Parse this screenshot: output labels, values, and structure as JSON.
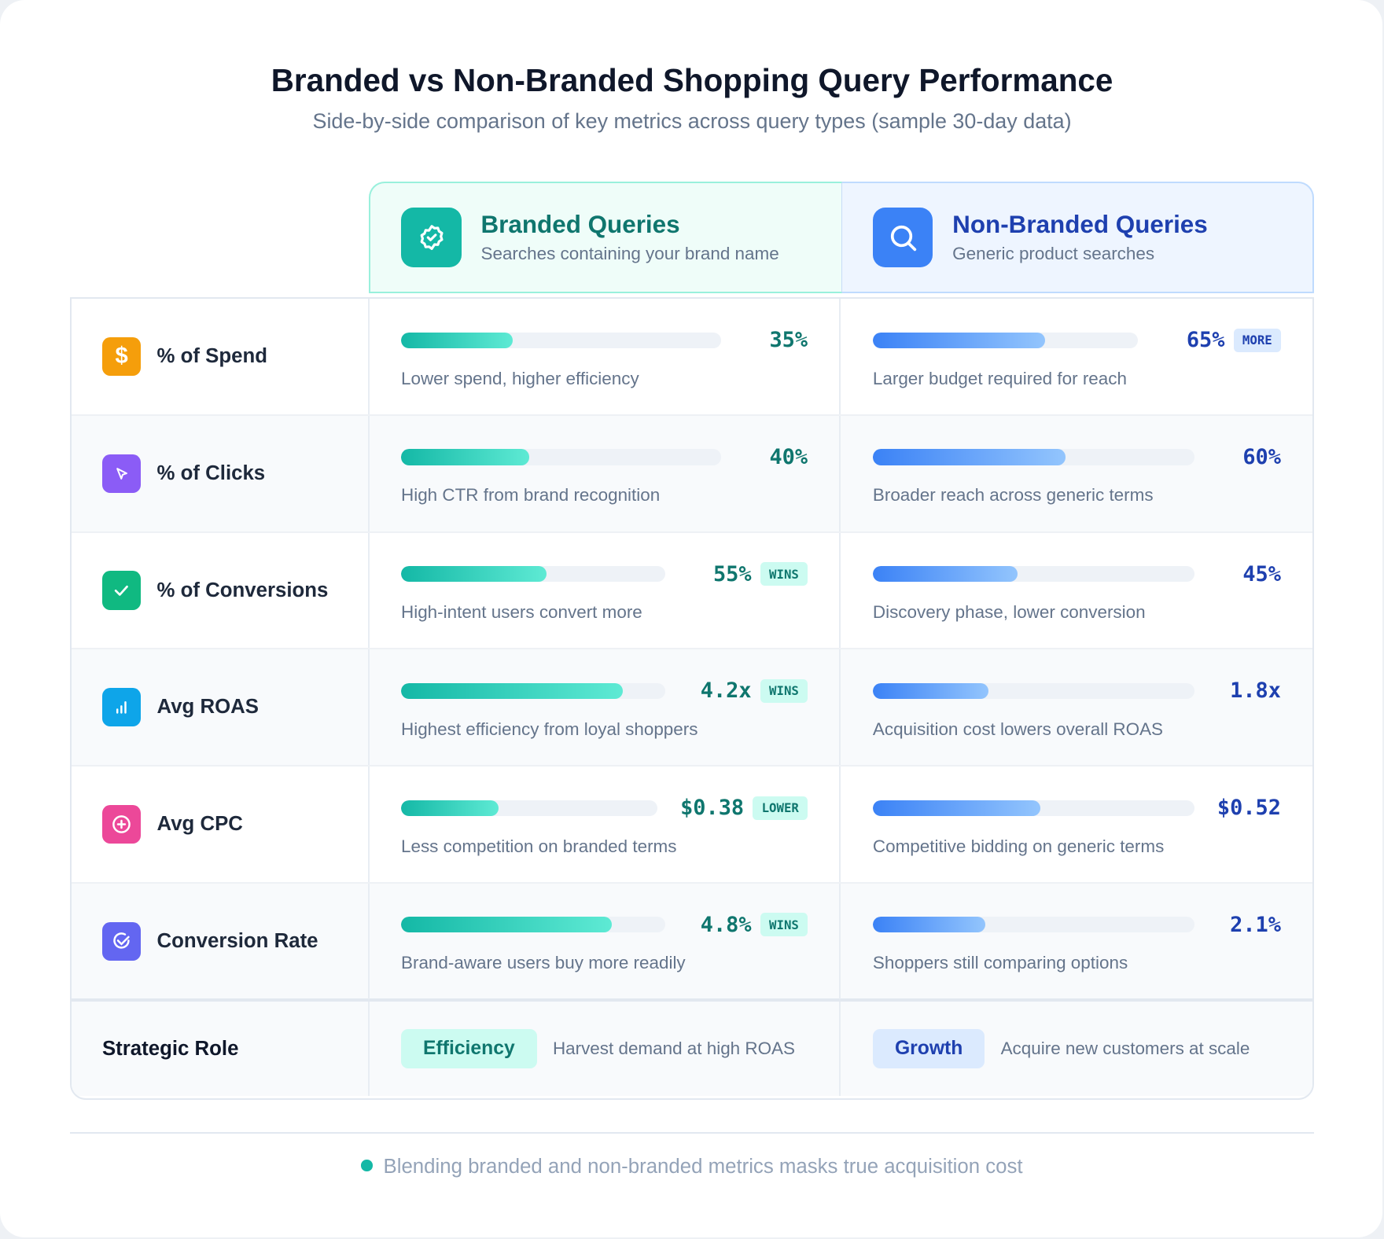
{
  "title": "Branded vs Non-Branded Shopping Query Performance",
  "subtitle": "Side-by-side comparison of key metrics across query types (sample 30-day data)",
  "columns": {
    "branded": {
      "name": "Branded Queries",
      "description": "Searches containing your brand name",
      "icon": "badge-check-icon",
      "color": "#14b8a6"
    },
    "non_branded": {
      "name": "Non-Branded Queries",
      "description": "Generic product searches",
      "icon": "search-icon",
      "color": "#3b82f6"
    }
  },
  "metrics": [
    {
      "label": "% of Spend",
      "icon": "dollar-icon",
      "icon_color": "#f59e0b",
      "branded": {
        "value": "35%",
        "bar_fill": 0.35,
        "note": "Lower spend, higher efficiency",
        "badge": ""
      },
      "non_branded": {
        "value": "65%",
        "bar_fill": 0.65,
        "note": "Larger budget required for reach",
        "badge": "MORE"
      }
    },
    {
      "label": "% of Clicks",
      "icon": "cursor-icon",
      "icon_color": "#8b5cf6",
      "branded": {
        "value": "40%",
        "bar_fill": 0.4,
        "note": "High CTR from brand recognition",
        "badge": ""
      },
      "non_branded": {
        "value": "60%",
        "bar_fill": 0.6,
        "note": "Broader reach across generic terms",
        "badge": ""
      }
    },
    {
      "label": "% of Conversions",
      "icon": "check-icon",
      "icon_color": "#10b981",
      "branded": {
        "value": "55%",
        "bar_fill": 0.55,
        "note": "High-intent users convert more",
        "badge": "WINS"
      },
      "non_branded": {
        "value": "45%",
        "bar_fill": 0.45,
        "note": "Discovery phase, lower conversion",
        "badge": ""
      }
    },
    {
      "label": "Avg ROAS",
      "icon": "bar-chart-icon",
      "icon_color": "#0ea5e9",
      "branded": {
        "value": "4.2x",
        "bar_fill": 0.84,
        "note": "Highest efficiency from loyal shoppers",
        "badge": "WINS"
      },
      "non_branded": {
        "value": "1.8x",
        "bar_fill": 0.36,
        "note": "Acquisition cost lowers overall ROAS",
        "badge": ""
      }
    },
    {
      "label": "Avg CPC",
      "icon": "plus-circle-icon",
      "icon_color": "#ec4899",
      "branded": {
        "value": "$0.38",
        "bar_fill": 0.38,
        "note": "Less competition on branded terms",
        "badge": "LOWER"
      },
      "non_branded": {
        "value": "$0.52",
        "bar_fill": 0.52,
        "note": "Competitive bidding on generic terms",
        "badge": ""
      }
    },
    {
      "label": "Conversion Rate",
      "icon": "circle-check-icon",
      "icon_color": "#6366f1",
      "branded": {
        "value": "4.8%",
        "bar_fill": 0.8,
        "note": "Brand-aware users buy more readily",
        "badge": "WINS"
      },
      "non_branded": {
        "value": "2.1%",
        "bar_fill": 0.35,
        "note": "Shoppers still comparing options",
        "badge": ""
      }
    }
  ],
  "strategic_role": {
    "label": "Strategic Role",
    "branded": {
      "pill": "Efficiency",
      "text": "Harvest demand at high ROAS"
    },
    "non_branded": {
      "pill": "Growth",
      "text": "Acquire new customers at scale"
    }
  },
  "footnote": "Blending branded and non-branded metrics masks true acquisition cost"
}
